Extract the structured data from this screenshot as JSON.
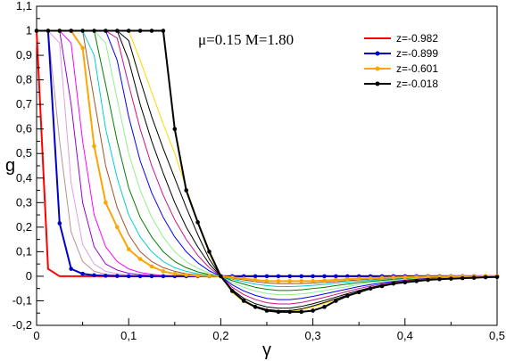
{
  "chart_data": {
    "type": "line",
    "title": "",
    "annotation": "μ=0.15 M=1.80",
    "xlabel": "γ",
    "ylabel": "g",
    "xlim": [
      0,
      0.5
    ],
    "ylim": [
      -0.2,
      1.1
    ],
    "xticks": [
      "0",
      "0,1",
      "0,2",
      "0,3",
      "0,4",
      "0,5"
    ],
    "yticks": [
      "-0,2",
      "-0,1",
      "0",
      "0,1",
      "0,2",
      "0,3",
      "0,4",
      "0,5",
      "0,6",
      "0,7",
      "0,8",
      "0,9",
      "1",
      "1,1"
    ],
    "legend_position": "top-right",
    "grid": false,
    "x": [
      0,
      0.0125,
      0.025,
      0.0375,
      0.05,
      0.0625,
      0.075,
      0.0875,
      0.1,
      0.1125,
      0.125,
      0.1375,
      0.15,
      0.1625,
      0.175,
      0.1875,
      0.2,
      0.2125,
      0.225,
      0.2375,
      0.25,
      0.2625,
      0.275,
      0.2875,
      0.3,
      0.3125,
      0.325,
      0.3375,
      0.35,
      0.3625,
      0.375,
      0.3875,
      0.4,
      0.4125,
      0.425,
      0.4375,
      0.45,
      0.4625,
      0.475,
      0.4875,
      0.5
    ],
    "series": [
      {
        "name": "z=-0.982",
        "color": "#ff0000",
        "markers": false,
        "width": 2,
        "values": [
          1,
          0.03,
          0,
          0,
          0,
          0,
          0,
          0,
          0,
          0,
          0,
          0,
          0,
          0,
          0,
          0,
          0,
          0,
          0,
          0,
          0,
          0,
          0,
          0,
          0,
          0,
          0,
          0,
          0,
          0,
          0,
          0,
          0,
          0,
          0,
          0,
          0,
          0,
          0,
          0,
          0
        ]
      },
      {
        "name": "z=-0.899",
        "color": "#0000cc",
        "markers": true,
        "width": 2,
        "values": [
          1,
          1,
          0.216,
          0.03,
          0.01,
          0.004,
          0.002,
          0.001,
          0,
          0,
          0,
          0,
          0,
          0,
          0,
          0,
          0,
          0,
          0,
          0,
          0,
          0,
          0,
          0,
          0,
          0,
          0,
          0,
          0,
          0,
          0,
          0,
          0,
          0,
          0,
          0,
          0,
          0,
          0,
          0,
          0
        ]
      },
      {
        "name": "",
        "color": "#bc8f8f",
        "markers": false,
        "width": 1,
        "values": [
          1,
          1,
          0.55,
          0.18,
          0.06,
          0.02,
          0.008,
          0.004,
          0.002,
          0.001,
          0,
          0,
          0,
          0,
          0,
          0,
          0,
          0,
          0,
          0,
          0,
          0,
          0,
          0,
          0,
          0,
          0,
          0,
          0,
          0,
          0,
          0,
          0,
          0,
          0,
          0,
          0,
          0,
          0,
          0,
          0
        ]
      },
      {
        "name": "",
        "color": "#dda0dd",
        "markers": false,
        "width": 1,
        "values": [
          1,
          1,
          0.95,
          0.38,
          0.13,
          0.05,
          0.02,
          0.01,
          0.005,
          0.002,
          0.001,
          0,
          0,
          0,
          0,
          0,
          0,
          0,
          0,
          0,
          0,
          0,
          0,
          0,
          0,
          0,
          0,
          0,
          0,
          0,
          0,
          0,
          0,
          0,
          0,
          0,
          0,
          0,
          0,
          0,
          0
        ]
      },
      {
        "name": "",
        "color": "#9400d3",
        "markers": false,
        "width": 1,
        "values": [
          1,
          1,
          1,
          0.7,
          0.3,
          0.12,
          0.05,
          0.025,
          0.012,
          0.006,
          0.003,
          0.001,
          0,
          0,
          0,
          0,
          0,
          0,
          0,
          0,
          0,
          0,
          0,
          0,
          0,
          0,
          0,
          0,
          0,
          0,
          0,
          0,
          0,
          0,
          0,
          0,
          0,
          0,
          0,
          0,
          0
        ]
      },
      {
        "name": "",
        "color": "#ff00ff",
        "markers": false,
        "width": 1,
        "values": [
          1,
          1,
          1,
          0.95,
          0.55,
          0.25,
          0.12,
          0.06,
          0.03,
          0.015,
          0.008,
          0.003,
          0.001,
          0,
          0,
          0,
          0,
          0,
          0,
          0,
          0,
          0,
          0,
          0,
          0,
          0,
          0,
          0,
          0,
          0,
          0,
          0,
          0,
          0,
          0,
          0,
          0,
          0,
          0,
          0,
          0
        ]
      },
      {
        "name": "z=-0.601",
        "color": "#ffa500",
        "markers": true,
        "width": 2,
        "values": [
          1,
          1,
          1,
          1,
          0.93,
          0.53,
          0.3,
          0.2,
          0.11,
          0.07,
          0.04,
          0.02,
          0.01,
          0.005,
          0.002,
          0.001,
          0,
          -0.005,
          -0.01,
          -0.015,
          -0.02,
          -0.02,
          -0.02,
          -0.02,
          -0.02,
          -0.018,
          -0.015,
          -0.012,
          -0.01,
          -0.008,
          -0.006,
          -0.005,
          -0.004,
          -0.003,
          -0.002,
          -0.002,
          -0.001,
          -0.001,
          -0.001,
          0,
          0
        ]
      },
      {
        "name": "",
        "color": "#a0522d",
        "markers": false,
        "width": 1,
        "values": [
          1,
          1,
          1,
          1,
          1,
          0.72,
          0.45,
          0.28,
          0.17,
          0.1,
          0.06,
          0.035,
          0.02,
          0.01,
          0.005,
          0.002,
          0,
          -0.008,
          -0.015,
          -0.022,
          -0.028,
          -0.03,
          -0.03,
          -0.03,
          -0.028,
          -0.025,
          -0.022,
          -0.018,
          -0.015,
          -0.012,
          -0.01,
          -0.008,
          -0.006,
          -0.004,
          -0.003,
          -0.002,
          -0.002,
          -0.001,
          -0.001,
          0,
          0
        ]
      },
      {
        "name": "",
        "color": "#00ced1",
        "markers": false,
        "width": 1,
        "values": [
          1,
          1,
          1,
          1,
          1,
          0.9,
          0.6,
          0.4,
          0.25,
          0.16,
          0.1,
          0.06,
          0.035,
          0.02,
          0.01,
          0.004,
          0,
          -0.012,
          -0.022,
          -0.032,
          -0.038,
          -0.042,
          -0.042,
          -0.04,
          -0.037,
          -0.033,
          -0.028,
          -0.024,
          -0.02,
          -0.016,
          -0.013,
          -0.01,
          -0.008,
          -0.006,
          -0.004,
          -0.003,
          -0.002,
          -0.002,
          -0.001,
          -0.001,
          0
        ]
      },
      {
        "name": "",
        "color": "#008000",
        "markers": false,
        "width": 1,
        "values": [
          1,
          1,
          1,
          1,
          1,
          1,
          0.78,
          0.55,
          0.36,
          0.24,
          0.16,
          0.1,
          0.06,
          0.035,
          0.018,
          0.007,
          0,
          -0.018,
          -0.032,
          -0.045,
          -0.053,
          -0.058,
          -0.058,
          -0.055,
          -0.05,
          -0.045,
          -0.038,
          -0.032,
          -0.026,
          -0.021,
          -0.017,
          -0.013,
          -0.01,
          -0.008,
          -0.006,
          -0.004,
          -0.003,
          -0.002,
          -0.002,
          -0.001,
          -0.001
        ]
      },
      {
        "name": "",
        "color": "#90ee90",
        "markers": false,
        "width": 1,
        "values": [
          1,
          1,
          1,
          1,
          1,
          1,
          0.95,
          0.72,
          0.5,
          0.35,
          0.24,
          0.16,
          0.1,
          0.06,
          0.032,
          0.013,
          0,
          -0.026,
          -0.045,
          -0.06,
          -0.07,
          -0.075,
          -0.075,
          -0.072,
          -0.066,
          -0.058,
          -0.05,
          -0.042,
          -0.034,
          -0.027,
          -0.021,
          -0.016,
          -0.012,
          -0.009,
          -0.007,
          -0.005,
          -0.004,
          -0.003,
          -0.002,
          -0.001,
          -0.001
        ]
      },
      {
        "name": "",
        "color": "#0000ff",
        "markers": false,
        "width": 1,
        "values": [
          1,
          1,
          1,
          1,
          1,
          1,
          1,
          0.88,
          0.65,
          0.47,
          0.34,
          0.24,
          0.16,
          0.1,
          0.055,
          0.022,
          0,
          -0.035,
          -0.06,
          -0.078,
          -0.09,
          -0.095,
          -0.095,
          -0.09,
          -0.082,
          -0.072,
          -0.062,
          -0.052,
          -0.042,
          -0.034,
          -0.027,
          -0.021,
          -0.016,
          -0.012,
          -0.009,
          -0.006,
          -0.005,
          -0.003,
          -0.002,
          -0.002,
          -0.001
        ]
      },
      {
        "name": "",
        "color": "#c71585",
        "markers": false,
        "width": 1,
        "values": [
          1,
          1,
          1,
          1,
          1,
          1,
          1,
          0.97,
          0.78,
          0.6,
          0.45,
          0.33,
          0.23,
          0.15,
          0.085,
          0.035,
          0,
          -0.045,
          -0.075,
          -0.095,
          -0.108,
          -0.113,
          -0.113,
          -0.107,
          -0.097,
          -0.086,
          -0.074,
          -0.062,
          -0.05,
          -0.04,
          -0.032,
          -0.024,
          -0.018,
          -0.014,
          -0.01,
          -0.007,
          -0.005,
          -0.004,
          -0.003,
          -0.002,
          -0.001
        ]
      },
      {
        "name": "",
        "color": "#000000",
        "markers": false,
        "width": 1,
        "values": [
          1,
          1,
          1,
          1,
          1,
          1,
          1,
          1,
          0.88,
          0.7,
          0.55,
          0.42,
          0.3,
          0.2,
          0.12,
          0.05,
          0,
          -0.055,
          -0.09,
          -0.112,
          -0.125,
          -0.13,
          -0.13,
          -0.123,
          -0.112,
          -0.099,
          -0.085,
          -0.071,
          -0.058,
          -0.046,
          -0.036,
          -0.028,
          -0.021,
          -0.015,
          -0.011,
          -0.008,
          -0.006,
          -0.004,
          -0.003,
          -0.002,
          -0.001
        ]
      },
      {
        "name": "",
        "color": "#000000",
        "markers": false,
        "width": 1,
        "values": [
          1,
          1,
          1,
          1,
          1,
          1,
          1,
          1,
          0.96,
          0.8,
          0.65,
          0.52,
          0.4,
          0.28,
          0.17,
          0.07,
          0,
          -0.062,
          -0.1,
          -0.122,
          -0.135,
          -0.14,
          -0.14,
          -0.133,
          -0.121,
          -0.107,
          -0.092,
          -0.077,
          -0.063,
          -0.05,
          -0.039,
          -0.03,
          -0.022,
          -0.016,
          -0.012,
          -0.009,
          -0.006,
          -0.004,
          -0.003,
          -0.002,
          -0.001
        ]
      },
      {
        "name": "",
        "color": "#ffd700",
        "markers": false,
        "width": 1,
        "values": [
          1,
          1,
          1,
          1,
          1,
          1,
          1,
          1,
          1,
          0.88,
          0.75,
          0.62,
          0.5,
          0.36,
          0.22,
          0.09,
          0,
          -0.066,
          -0.105,
          -0.128,
          -0.14,
          -0.145,
          -0.145,
          -0.138,
          -0.126,
          -0.111,
          -0.096,
          -0.081,
          -0.066,
          -0.052,
          -0.041,
          -0.031,
          -0.023,
          -0.017,
          -0.012,
          -0.009,
          -0.006,
          -0.004,
          -0.003,
          -0.002,
          -0.001
        ]
      },
      {
        "name": "z=-0.018",
        "color": "#000000",
        "markers": true,
        "width": 2,
        "values": [
          1,
          1,
          1,
          1,
          1,
          1,
          1,
          1,
          1,
          1,
          1,
          1,
          0.6,
          0.35,
          0.22,
          0.1,
          0,
          -0.06,
          -0.1,
          -0.125,
          -0.14,
          -0.145,
          -0.145,
          -0.145,
          -0.14,
          -0.125,
          -0.1,
          -0.08,
          -0.065,
          -0.05,
          -0.04,
          -0.03,
          -0.025,
          -0.02,
          -0.015,
          -0.012,
          -0.01,
          -0.008,
          -0.006,
          -0.004,
          -0.003
        ]
      }
    ]
  }
}
